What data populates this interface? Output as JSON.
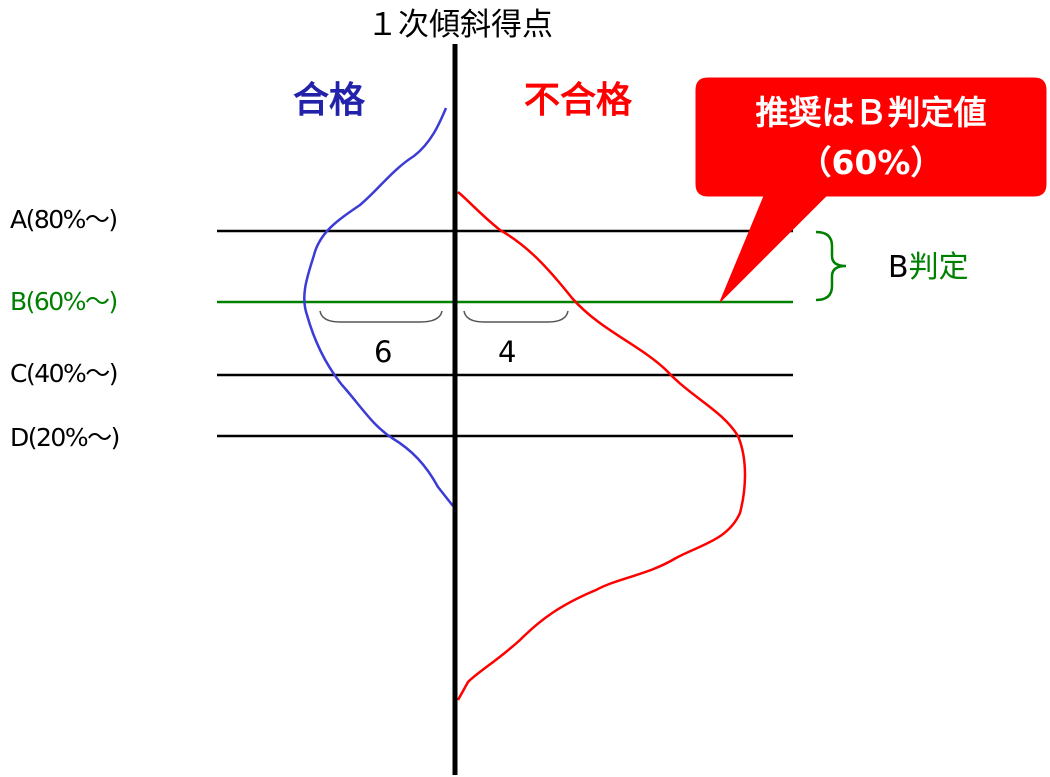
{
  "title": "１次傾斜得点",
  "groups": {
    "pass": {
      "label": "合格",
      "color": "#2222aa"
    },
    "fail": {
      "label": "不合格",
      "color": "#ff0000"
    }
  },
  "grades": [
    {
      "label": "A(80%～)",
      "color": "#000000"
    },
    {
      "label": "B(60%～)",
      "color": "#008000"
    },
    {
      "label": "C(40%～)",
      "color": "#000000"
    },
    {
      "label": "D(20%～)",
      "color": "#000000"
    }
  ],
  "counts": {
    "pass": "6",
    "fail": "4"
  },
  "judgment": {
    "prefix": "B",
    "suffix": "判定",
    "prefix_color": "#000000",
    "suffix_color": "#008000"
  },
  "callout": {
    "line1": "推奨はＢ判定値",
    "line2": "（60%）",
    "color": "#ff0000"
  },
  "curve_colors": {
    "pass": "#3b3bd6",
    "fail": "#ff0000"
  }
}
